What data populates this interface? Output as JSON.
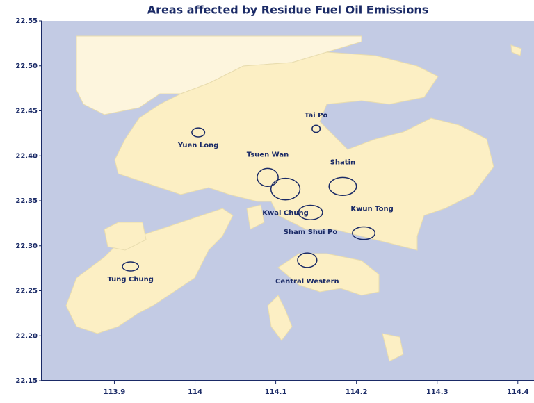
{
  "chart_data": {
    "type": "map",
    "title": "Areas affected by Residue Fuel Oil Emissions",
    "xlim": [
      113.81,
      114.42
    ],
    "ylim": [
      22.15,
      22.55
    ],
    "xticks": [
      113.9,
      114,
      114.1,
      114.2,
      114.3,
      114.4
    ],
    "yticks": [
      {
        "value": 22.15,
        "label": "22.15"
      },
      {
        "value": 22.2,
        "label": "22.20"
      },
      {
        "value": 22.25,
        "label": "22.25"
      },
      {
        "value": 22.3,
        "label": "22.30"
      },
      {
        "value": 22.35,
        "label": "22.35"
      },
      {
        "value": 22.4,
        "label": "22.40"
      },
      {
        "value": 22.45,
        "label": "22.45"
      },
      {
        "value": 22.5,
        "label": "22.50"
      },
      {
        "value": 22.55,
        "label": "22.55"
      }
    ],
    "color": "#1a2a66",
    "areas": [
      {
        "name": "Yuen Long",
        "x": 114.004,
        "y": 22.426,
        "rx": 0.008,
        "ry": 0.005
      },
      {
        "name": "Tai Po",
        "x": 114.15,
        "y": 22.43,
        "rx": 0.005,
        "ry": 0.004
      },
      {
        "name": "Tsuen Wan",
        "x": 114.09,
        "y": 22.376,
        "rx": 0.013,
        "ry": 0.01
      },
      {
        "name": "Kwai Chung",
        "x": 114.112,
        "y": 22.363,
        "rx": 0.018,
        "ry": 0.012
      },
      {
        "name": "Shatin",
        "x": 114.183,
        "y": 22.366,
        "rx": 0.017,
        "ry": 0.01
      },
      {
        "name": "Sham Shui Po",
        "x": 114.143,
        "y": 22.337,
        "rx": 0.015,
        "ry": 0.008
      },
      {
        "name": "Kwun Tong",
        "x": 114.209,
        "y": 22.314,
        "rx": 0.014,
        "ry": 0.007
      },
      {
        "name": "Tung Chung",
        "x": 113.92,
        "y": 22.277,
        "rx": 0.01,
        "ry": 0.005
      },
      {
        "name": "Central Western",
        "x": 114.139,
        "y": 22.284,
        "rx": 0.012,
        "ry": 0.008
      }
    ]
  }
}
